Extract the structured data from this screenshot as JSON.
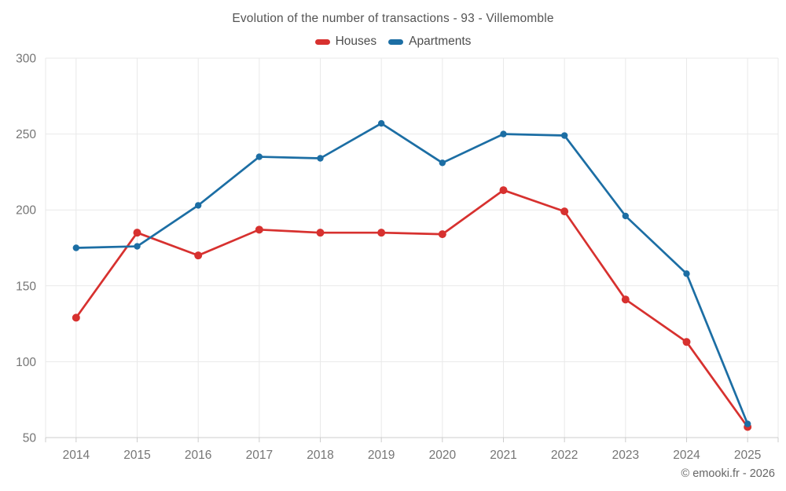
{
  "title": "Evolution of the number of transactions - 93 - Villemomble",
  "footer": "© emooki.fr - 2026",
  "colors": {
    "houses": "#d7312f",
    "apartments": "#1c6ea4",
    "grid": "#e9e9e9",
    "axis": "#cccccc",
    "tick_label": "#757575",
    "title_text": "#545454",
    "legend_text": "#4d4d4d",
    "footer_text": "#666666",
    "background": "#ffffff"
  },
  "chart_data": {
    "type": "line",
    "title": "Evolution of the number of transactions - 93 - Villemomble",
    "x": [
      "2014",
      "2015",
      "2016",
      "2017",
      "2018",
      "2019",
      "2020",
      "2021",
      "2022",
      "2023",
      "2024",
      "2025"
    ],
    "series": [
      {
        "name": "Houses",
        "color": "#d7312f",
        "values": [
          129,
          185,
          170,
          187,
          185,
          185,
          184,
          213,
          199,
          141,
          113,
          57
        ]
      },
      {
        "name": "Apartments",
        "color": "#1c6ea4",
        "values": [
          175,
          176,
          203,
          235,
          234,
          257,
          231,
          250,
          249,
          196,
          158,
          59
        ]
      }
    ],
    "ylim": [
      50,
      300
    ],
    "yticks": [
      50,
      100,
      150,
      200,
      250,
      300
    ],
    "grid": true,
    "legend_position": "top",
    "marker": "circle"
  }
}
